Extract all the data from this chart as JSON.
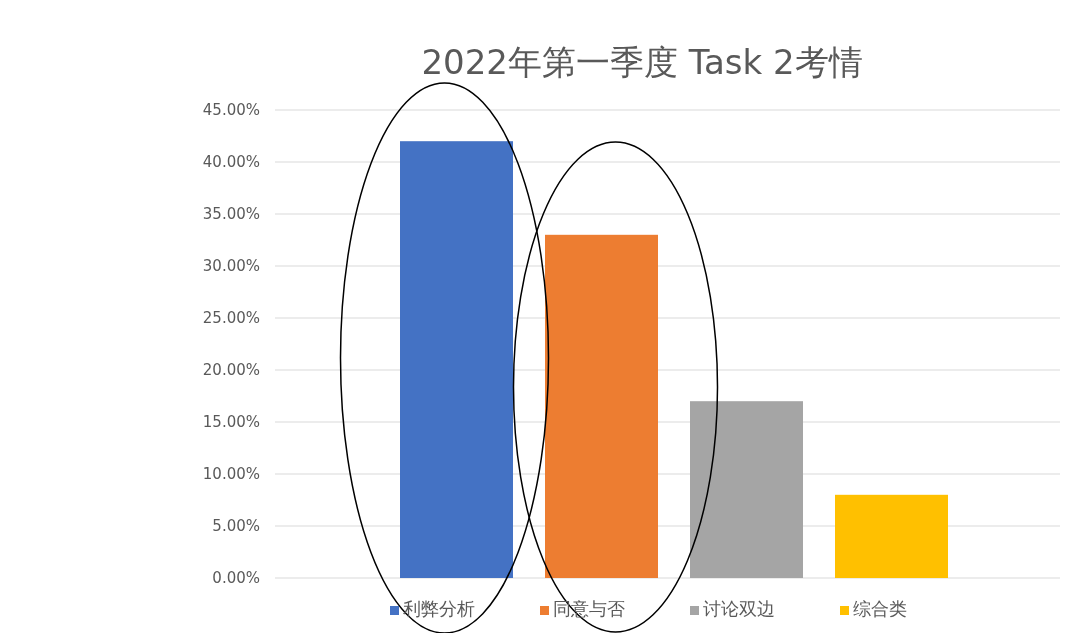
{
  "chart_data": {
    "type": "bar",
    "title": "2022年第一季度 Task 2考情",
    "categories": [
      null,
      null,
      null,
      null
    ],
    "series": [
      {
        "name": "利弊分析",
        "color": "#4472c4",
        "values": [
          42,
          null,
          null,
          null
        ]
      },
      {
        "name": "同意与否",
        "color": "#ed7d31",
        "values": [
          null,
          33,
          null,
          null
        ]
      },
      {
        "name": "讨论双边",
        "color": "#a5a5a5",
        "values": [
          null,
          null,
          17,
          null
        ]
      },
      {
        "name": "综合类",
        "color": "#ffc000",
        "values": [
          null,
          null,
          null,
          8
        ]
      }
    ],
    "ylim": [
      0,
      45
    ],
    "yticks": [
      {
        "value": 0,
        "label": "0.00%"
      },
      {
        "value": 5,
        "label": "5.00%"
      },
      {
        "value": 10,
        "label": "10.00%"
      },
      {
        "value": 15,
        "label": "15.00%"
      },
      {
        "value": 20,
        "label": "20.00%"
      },
      {
        "value": 25,
        "label": "25.00%"
      },
      {
        "value": 30,
        "label": "30.00%"
      },
      {
        "value": 35,
        "label": "35.00%"
      },
      {
        "value": 40,
        "label": "40.00%"
      },
      {
        "value": 45,
        "label": "45.00%"
      }
    ],
    "grid": "y",
    "legend": "bottom"
  }
}
